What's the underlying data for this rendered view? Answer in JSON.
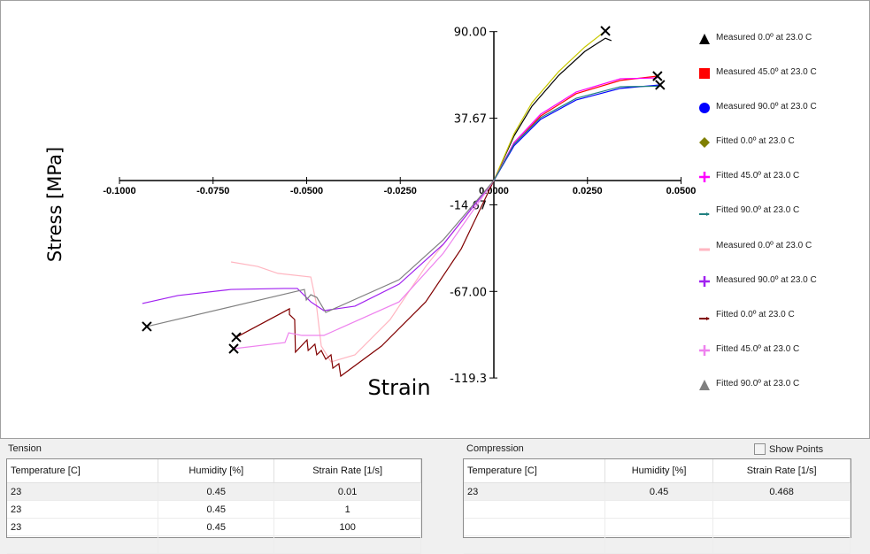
{
  "chart_data": {
    "type": "line",
    "xlabel": "Strain",
    "ylabel": "Stress [MPa]",
    "xlim": [
      -0.1,
      0.05
    ],
    "ylim": [
      -119.3,
      90.0
    ],
    "x_ticks": [
      "-0.1000",
      "-0.0750",
      "-0.0500",
      "-0.0250",
      "0.0000",
      "0.0250",
      "0.0500"
    ],
    "x_tick_values": [
      -0.1,
      -0.075,
      -0.05,
      -0.025,
      0,
      0.025,
      0.05
    ],
    "y_ticks": [
      "90.00",
      "37.67",
      "-14.67",
      "-67.00",
      "-119.3"
    ],
    "y_tick_values": [
      90.0,
      37.67,
      -14.67,
      -67.0,
      -119.3
    ],
    "grid": false,
    "legend_placement": "right",
    "series": [
      {
        "name": "Measured 0.0º at 23.0 C",
        "color": "#000000",
        "marker": "triangle",
        "points": [
          [
            0,
            0
          ],
          [
            0.0054,
            27
          ],
          [
            0.0102,
            45
          ],
          [
            0.0173,
            63.5
          ],
          [
            0.0243,
            78
          ],
          [
            0.0298,
            86
          ],
          [
            0.0314,
            84.5
          ]
        ]
      },
      {
        "name": "Measured 45.0º at 23.0 C",
        "color": "#ff0000",
        "marker": "square",
        "points": [
          [
            0,
            0
          ],
          [
            0.0054,
            22
          ],
          [
            0.0125,
            39
          ],
          [
            0.022,
            52.5
          ],
          [
            0.0338,
            60.5
          ],
          [
            0.0437,
            63.1
          ]
        ]
      },
      {
        "name": "Measured 90.0º at 23.0 C",
        "color": "#0000ff",
        "marker": "circle",
        "points": [
          [
            0,
            0
          ],
          [
            0.0054,
            21
          ],
          [
            0.0125,
            37
          ],
          [
            0.022,
            48.7
          ],
          [
            0.0338,
            55.7
          ],
          [
            0.0444,
            57.8
          ]
        ]
      },
      {
        "name": "Fitted 0.0º at 23.0 C",
        "color": "#c8c800",
        "marker": "diamond",
        "marker_color": "#808000",
        "points": [
          [
            0,
            0
          ],
          [
            0.0054,
            28.3
          ],
          [
            0.0102,
            47.1
          ],
          [
            0.0173,
            65.8
          ],
          [
            0.0243,
            80.7
          ],
          [
            0.0298,
            90.4
          ]
        ]
      },
      {
        "name": "Fitted 45.0º at 23.0 C",
        "color": "#ff00ff",
        "marker": "plus",
        "points": [
          [
            0,
            0
          ],
          [
            0.0054,
            23
          ],
          [
            0.0125,
            40.1
          ],
          [
            0.022,
            53.5
          ],
          [
            0.0338,
            61.5
          ],
          [
            0.0437,
            62
          ]
        ]
      },
      {
        "name": "Fitted 90.0º at 23.0 C",
        "color": "#208080",
        "marker": "arrow",
        "points": [
          [
            0,
            0
          ],
          [
            0.0054,
            22
          ],
          [
            0.0125,
            38
          ],
          [
            0.022,
            49.7
          ],
          [
            0.0338,
            56.7
          ],
          [
            0.0444,
            57
          ]
        ]
      },
      {
        "name": "Measured 0.0º at 23.0 C",
        "color": "#ffb6c1",
        "marker": "line",
        "points": [
          [
            0,
            0
          ],
          [
            -0.0087,
            -25.1
          ],
          [
            -0.0182,
            -51.9
          ],
          [
            -0.0277,
            -84
          ],
          [
            -0.0371,
            -105.3
          ],
          [
            -0.0435,
            -109.6
          ],
          [
            -0.0461,
            -100
          ],
          [
            -0.0475,
            -73.3
          ],
          [
            -0.0489,
            -58.3
          ],
          [
            -0.0577,
            -56.1
          ],
          [
            -0.0631,
            -51.9
          ],
          [
            -0.0702,
            -49.2
          ]
        ]
      },
      {
        "name": "Measured 90.0º at 23.0 C",
        "color": "#a020f0",
        "marker": "plus",
        "points": [
          [
            0,
            0
          ],
          [
            -0.0135,
            -38.5
          ],
          [
            -0.0253,
            -62.6
          ],
          [
            -0.0371,
            -75.9
          ],
          [
            -0.0454,
            -78.6
          ],
          [
            -0.0489,
            -73.3
          ],
          [
            -0.0525,
            -65.2
          ],
          [
            -0.056,
            -65.2
          ],
          [
            -0.0702,
            -65.8
          ],
          [
            -0.0844,
            -69.5
          ],
          [
            -0.0939,
            -74.3
          ]
        ]
      },
      {
        "name": "Fitted 0.0º at 23.0 C",
        "color": "#800000",
        "marker": "arrow",
        "points": [
          [
            0,
            0
          ],
          [
            -0.0087,
            -41.2
          ],
          [
            -0.0182,
            -73.3
          ],
          [
            -0.03,
            -100
          ],
          [
            -0.0409,
            -118.2
          ],
          [
            -0.0414,
            -110.7
          ],
          [
            -0.043,
            -113.4
          ],
          [
            -0.0435,
            -105.3
          ],
          [
            -0.0449,
            -108
          ],
          [
            -0.0461,
            -102.7
          ],
          [
            -0.0473,
            -105.3
          ],
          [
            -0.0478,
            -98.9
          ],
          [
            -0.0496,
            -102.7
          ],
          [
            -0.0499,
            -96.3
          ],
          [
            -0.053,
            -103.7
          ],
          [
            -0.0532,
            -84
          ],
          [
            -0.0546,
            -81
          ],
          [
            -0.0546,
            -77.5
          ],
          [
            -0.0688,
            -94.7
          ]
        ]
      },
      {
        "name": "Fitted 45.0º at 23.0 C",
        "color": "#ee82ee",
        "marker": "plus",
        "points": [
          [
            0,
            0
          ],
          [
            -0.0135,
            -43.9
          ],
          [
            -0.0253,
            -73.3
          ],
          [
            -0.0454,
            -93.6
          ],
          [
            -0.0513,
            -93.6
          ],
          [
            -0.0548,
            -92
          ],
          [
            -0.0558,
            -97.9
          ],
          [
            -0.0695,
            -101.6
          ]
        ]
      },
      {
        "name": "Fitted 90.0º at 23.0 C",
        "color": "#808080",
        "marker": "triangle",
        "points": [
          [
            0,
            0
          ],
          [
            -0.0135,
            -35.8
          ],
          [
            -0.0253,
            -59.9
          ],
          [
            -0.0449,
            -79.7
          ],
          [
            -0.0473,
            -70.6
          ],
          [
            -0.0489,
            -69
          ],
          [
            -0.0501,
            -72.2
          ],
          [
            -0.0506,
            -65.8
          ],
          [
            -0.0927,
            -88.2
          ]
        ]
      }
    ],
    "failure_points": [
      [
        0.0298,
        90.4
      ],
      [
        0.0437,
        63.1
      ],
      [
        0.0444,
        57.8
      ],
      [
        -0.0927,
        -88.2
      ],
      [
        -0.0688,
        -94.7
      ],
      [
        -0.0695,
        -101.6
      ]
    ]
  },
  "tension": {
    "label": "Tension",
    "columns": [
      "Temperature [C]",
      "Humidity [%]",
      "Strain Rate [1/s]"
    ],
    "rows": [
      [
        "23",
        "0.45",
        "0.01"
      ],
      [
        "23",
        "0.45",
        "1"
      ],
      [
        "23",
        "0.45",
        "100"
      ],
      [
        "",
        "",
        ""
      ]
    ]
  },
  "compression": {
    "label": "Compression",
    "columns": [
      "Temperature [C]",
      "Humidity [%]",
      "Strain Rate [1/s]"
    ],
    "rows": [
      [
        "23",
        "0.45",
        "0.468"
      ],
      [
        "",
        "",
        ""
      ],
      [
        "",
        "",
        ""
      ],
      [
        "",
        "",
        ""
      ]
    ]
  },
  "show_points": {
    "label": "Show Points",
    "checked": false
  }
}
